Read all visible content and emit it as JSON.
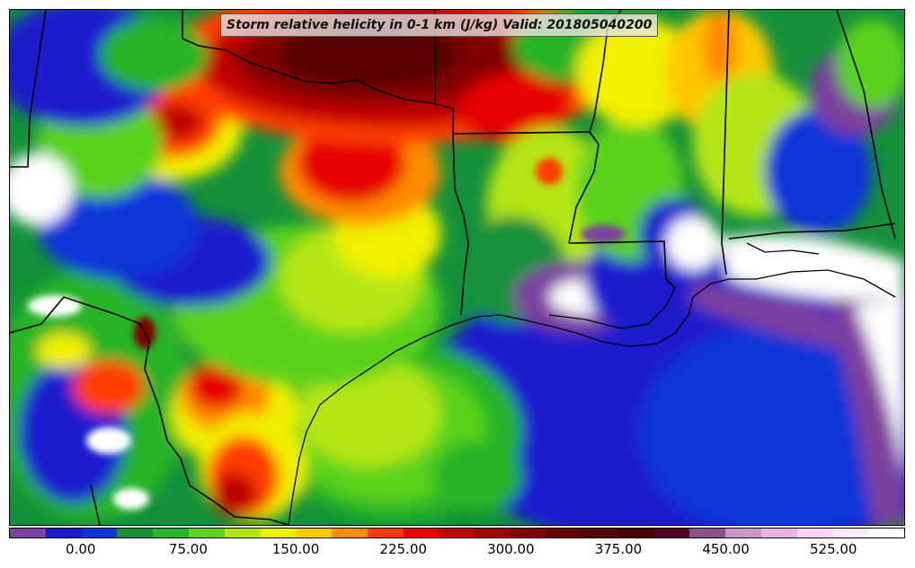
{
  "title": "Storm relative helicity in 0-1 km (J/kg) Valid: 201805040200",
  "colorbar": {
    "min": -50,
    "max": 575,
    "step": 25,
    "colors": [
      "#7b3f9e",
      "#1a1acc",
      "#0a36d8",
      "#14903a",
      "#28b428",
      "#5ad21e",
      "#b4e614",
      "#f0f000",
      "#ffc800",
      "#ff8c00",
      "#ff3c00",
      "#e60000",
      "#c00000",
      "#a00000",
      "#800000",
      "#6a0000",
      "#560000",
      "#440000",
      "#500028",
      "#8c508c",
      "#c896c8",
      "#e6b4e6",
      "#ffd2ff",
      "#ffe6ff",
      "#ffffff"
    ],
    "tick_labels": [
      "0.00",
      "75.00",
      "150.00",
      "225.00",
      "300.00",
      "375.00",
      "450.00",
      "525.00"
    ],
    "tick_values": [
      0,
      75,
      150,
      225,
      300,
      375,
      450,
      525
    ]
  }
}
